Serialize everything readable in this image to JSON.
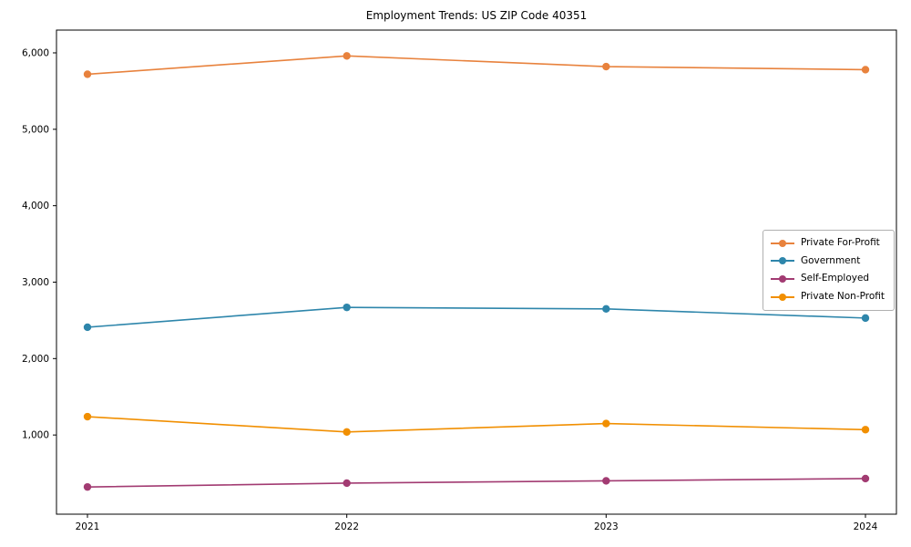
{
  "title": "Employment Trends: US ZIP Code 40351",
  "chart_data": {
    "type": "line",
    "title": "Employment Trends: US ZIP Code 40351",
    "xlabel": "",
    "ylabel": "",
    "categories": [
      "2021",
      "2022",
      "2023",
      "2024"
    ],
    "series": [
      {
        "name": "Private For-Profit",
        "color": "#E8823D",
        "values": [
          5720,
          5960,
          5820,
          5780
        ]
      },
      {
        "name": "Government",
        "color": "#2E86AB",
        "values": [
          2410,
          2670,
          2650,
          2530
        ]
      },
      {
        "name": "Self-Employed",
        "color": "#A23B72",
        "values": [
          320,
          370,
          400,
          430
        ]
      },
      {
        "name": "Private Non-Profit",
        "color": "#F18F01",
        "values": [
          1240,
          1040,
          1150,
          1070
        ]
      }
    ],
    "yticks": [
      1000,
      2000,
      3000,
      4000,
      5000,
      6000
    ],
    "ylim": [
      -36,
      6298
    ],
    "grid": false,
    "legend_position": "center right",
    "marker": "circle",
    "frame_color": "#000000"
  }
}
